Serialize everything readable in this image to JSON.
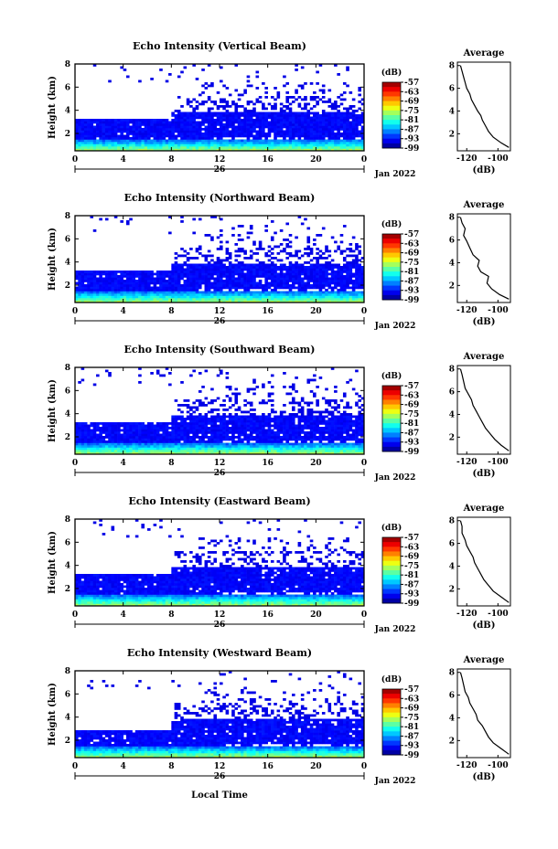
{
  "figure": {
    "xlabel": "Local Time",
    "date_label": "Jan 2022",
    "day_label": "26",
    "avg_title": "Average",
    "avg_xlabel": "(dB)",
    "cb_title": "(dB)"
  },
  "chart_data": [
    {
      "type": "heatmap",
      "title": "Echo Intensity (Vertical Beam)",
      "xlabel": "Local Time",
      "ylabel": "Height (km)",
      "x_ticks": [
        "0",
        "4",
        "8",
        "12",
        "16",
        "20",
        "0"
      ],
      "x_range_hours": [
        0,
        24
      ],
      "y_ticks": [
        "2",
        "4",
        "6",
        "8"
      ],
      "y_range_km": [
        0.5,
        8
      ],
      "colorbar": {
        "label": "(dB)",
        "ticks": [
          "-57",
          "-63",
          "-69",
          "-75",
          "-81",
          "-87",
          "-93",
          "-99"
        ],
        "range": [
          -99,
          -57
        ]
      },
      "average_profile": {
        "title": "Average",
        "xlabel": "(dB)",
        "x_ticks": [
          "-120",
          "-100"
        ],
        "y_ticks": [
          "2",
          "4",
          "6",
          "8"
        ],
        "points": [
          [
            -93,
            0.8
          ],
          [
            -98,
            1.2
          ],
          [
            -103,
            1.7
          ],
          [
            -106,
            2.2
          ],
          [
            -108,
            2.7
          ],
          [
            -110,
            3.2
          ],
          [
            -111,
            3.6
          ],
          [
            -113,
            4.0
          ],
          [
            -115,
            4.5
          ],
          [
            -117,
            5.0
          ],
          [
            -118,
            5.5
          ],
          [
            -120,
            6.0
          ],
          [
            -121,
            6.5
          ],
          [
            -122,
            7.0
          ],
          [
            -123,
            7.5
          ],
          [
            -124,
            8.0
          ]
        ]
      }
    },
    {
      "type": "heatmap",
      "title": "Echo Intensity (Northward Beam)",
      "xlabel": "Local Time",
      "ylabel": "Height (km)",
      "x_ticks": [
        "0",
        "4",
        "8",
        "12",
        "16",
        "20",
        "0"
      ],
      "x_range_hours": [
        0,
        24
      ],
      "y_ticks": [
        "2",
        "4",
        "6",
        "8"
      ],
      "y_range_km": [
        0.5,
        8
      ],
      "colorbar": {
        "label": "(dB)",
        "ticks": [
          "-57",
          "-63",
          "-69",
          "-75",
          "-81",
          "-87",
          "-93",
          "-99"
        ],
        "range": [
          -99,
          -57
        ]
      },
      "average_profile": {
        "title": "Average",
        "xlabel": "(dB)",
        "x_ticks": [
          "-120",
          "-100"
        ],
        "y_ticks": [
          "2",
          "4",
          "6",
          "8"
        ],
        "points": [
          [
            -93,
            0.8
          ],
          [
            -99,
            1.2
          ],
          [
            -104,
            1.7
          ],
          [
            -107,
            2.2
          ],
          [
            -106,
            2.8
          ],
          [
            -111,
            3.2
          ],
          [
            -113,
            3.7
          ],
          [
            -112,
            4.2
          ],
          [
            -116,
            4.7
          ],
          [
            -118,
            5.3
          ],
          [
            -120,
            5.9
          ],
          [
            -122,
            6.4
          ],
          [
            -121,
            7.0
          ],
          [
            -123,
            7.5
          ],
          [
            -124,
            8.0
          ]
        ]
      }
    },
    {
      "type": "heatmap",
      "title": "Echo Intensity (Southward Beam)",
      "xlabel": "Local Time",
      "ylabel": "Height (km)",
      "x_ticks": [
        "0",
        "4",
        "8",
        "12",
        "16",
        "20",
        "0"
      ],
      "x_range_hours": [
        0,
        24
      ],
      "y_ticks": [
        "2",
        "4",
        "6",
        "8"
      ],
      "y_range_km": [
        0.5,
        8
      ],
      "colorbar": {
        "label": "(dB)",
        "ticks": [
          "-57",
          "-63",
          "-69",
          "-75",
          "-81",
          "-87",
          "-93",
          "-99"
        ],
        "range": [
          -99,
          -57
        ]
      },
      "average_profile": {
        "title": "Average",
        "xlabel": "(dB)",
        "x_ticks": [
          "-120",
          "-100"
        ],
        "y_ticks": [
          "2",
          "4",
          "6",
          "8"
        ],
        "points": [
          [
            -93,
            0.8
          ],
          [
            -98,
            1.3
          ],
          [
            -102,
            1.8
          ],
          [
            -105,
            2.3
          ],
          [
            -108,
            2.8
          ],
          [
            -110,
            3.3
          ],
          [
            -112,
            3.8
          ],
          [
            -114,
            4.3
          ],
          [
            -116,
            4.8
          ],
          [
            -117,
            5.3
          ],
          [
            -119,
            5.8
          ],
          [
            -121,
            6.3
          ],
          [
            -122,
            6.9
          ],
          [
            -123,
            7.5
          ],
          [
            -124,
            8.0
          ]
        ]
      }
    },
    {
      "type": "heatmap",
      "title": "Echo Intensity (Eastward Beam)",
      "xlabel": "Local Time",
      "ylabel": "Height (km)",
      "x_ticks": [
        "0",
        "4",
        "8",
        "12",
        "16",
        "20",
        "0"
      ],
      "x_range_hours": [
        0,
        24
      ],
      "y_ticks": [
        "2",
        "4",
        "6",
        "8"
      ],
      "y_range_km": [
        0.5,
        8
      ],
      "colorbar": {
        "label": "(dB)",
        "ticks": [
          "-57",
          "-63",
          "-69",
          "-75",
          "-81",
          "-87",
          "-93",
          "-99"
        ],
        "range": [
          -99,
          -57
        ]
      },
      "average_profile": {
        "title": "Average",
        "xlabel": "(dB)",
        "x_ticks": [
          "-120",
          "-100"
        ],
        "y_ticks": [
          "2",
          "4",
          "6",
          "8"
        ],
        "points": [
          [
            -93,
            0.8
          ],
          [
            -98,
            1.3
          ],
          [
            -103,
            1.8
          ],
          [
            -106,
            2.3
          ],
          [
            -109,
            2.8
          ],
          [
            -111,
            3.3
          ],
          [
            -113,
            3.8
          ],
          [
            -115,
            4.3
          ],
          [
            -116,
            4.8
          ],
          [
            -118,
            5.3
          ],
          [
            -120,
            5.8
          ],
          [
            -121,
            6.3
          ],
          [
            -123,
            6.9
          ],
          [
            -123,
            7.5
          ],
          [
            -124,
            8.0
          ]
        ]
      }
    },
    {
      "type": "heatmap",
      "title": "Echo Intensity (Westward Beam)",
      "xlabel": "Local Time",
      "ylabel": "Height (km)",
      "x_ticks": [
        "0",
        "4",
        "8",
        "12",
        "16",
        "20",
        "0"
      ],
      "x_range_hours": [
        0,
        24
      ],
      "y_ticks": [
        "2",
        "4",
        "6",
        "8"
      ],
      "y_range_km": [
        0.5,
        8
      ],
      "colorbar": {
        "label": "(dB)",
        "ticks": [
          "-57",
          "-63",
          "-69",
          "-75",
          "-81",
          "-87",
          "-93",
          "-99"
        ],
        "range": [
          -99,
          -57
        ]
      },
      "average_profile": {
        "title": "Average",
        "xlabel": "(dB)",
        "x_ticks": [
          "-120",
          "-100"
        ],
        "y_ticks": [
          "2",
          "4",
          "6",
          "8"
        ],
        "points": [
          [
            -93,
            0.8
          ],
          [
            -98,
            1.3
          ],
          [
            -103,
            1.8
          ],
          [
            -106,
            2.3
          ],
          [
            -108,
            2.8
          ],
          [
            -110,
            3.3
          ],
          [
            -113,
            3.8
          ],
          [
            -114,
            4.3
          ],
          [
            -116,
            4.8
          ],
          [
            -118,
            5.3
          ],
          [
            -119,
            5.8
          ],
          [
            -121,
            6.3
          ],
          [
            -122,
            6.9
          ],
          [
            -123,
            7.5
          ],
          [
            -124,
            8.0
          ]
        ]
      }
    }
  ]
}
